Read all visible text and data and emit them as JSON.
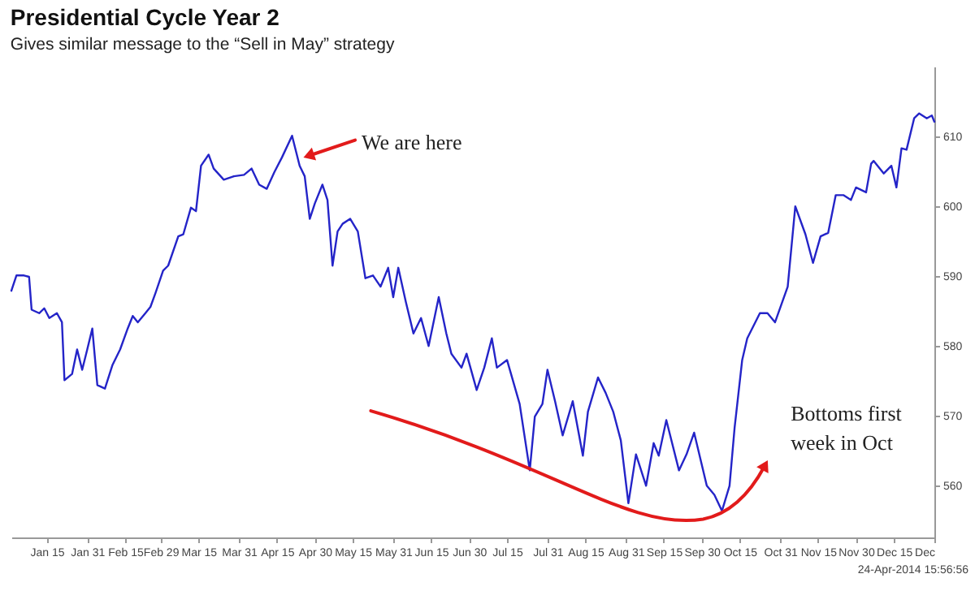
{
  "chart_data": {
    "type": "line",
    "title": "Presidential Cycle Year 2",
    "subtitle": "Gives similar message to the “Sell in May” strategy",
    "x": [
      "--01-01",
      "--01-03",
      "--01-06",
      "--01-08",
      "--01-09",
      "--01-12",
      "--01-14",
      "--01-16",
      "--01-19",
      "--01-21",
      "--01-22",
      "--01-25",
      "--01-27",
      "--01-29",
      "--01-31",
      "--02-02",
      "--02-04",
      "--02-07",
      "--02-10",
      "--02-13",
      "--02-16",
      "--02-18",
      "--02-20",
      "--02-23",
      "--02-25",
      "--02-27",
      "--03-01",
      "--03-03",
      "--03-07",
      "--03-09",
      "--03-12",
      "--03-14",
      "--03-16",
      "--03-19",
      "--03-21",
      "--03-25",
      "--03-29",
      "--04-02",
      "--04-05",
      "--04-08",
      "--04-11",
      "--04-14",
      "--04-17",
      "--04-21",
      "--04-24",
      "--04-26",
      "--04-28",
      "--04-30",
      "--05-03",
      "--05-05",
      "--05-07",
      "--05-09",
      "--05-11",
      "--05-14",
      "--05-17",
      "--05-20",
      "--05-23",
      "--05-26",
      "--05-29",
      "--05-31",
      "--06-02",
      "--06-05",
      "--06-08",
      "--06-11",
      "--06-14",
      "--06-18",
      "--06-21",
      "--06-23",
      "--06-27",
      "--06-29",
      "--07-03",
      "--07-06",
      "--07-09",
      "--07-11",
      "--07-15",
      "--07-20",
      "--07-24",
      "--07-26",
      "--07-29",
      "--07-31",
      "--08-03",
      "--08-06",
      "--08-10",
      "--08-14",
      "--08-16",
      "--08-20",
      "--08-23",
      "--08-26",
      "--08-29",
      "--09-01",
      "--09-04",
      "--09-08",
      "--09-11",
      "--09-13",
      "--09-16",
      "--09-21",
      "--09-24",
      "--09-27",
      "--10-02",
      "--10-05",
      "--10-08",
      "--10-11",
      "--10-13",
      "--10-16",
      "--10-18",
      "--10-23",
      "--10-26",
      "--10-29",
      "--11-03",
      "--11-06",
      "--11-10",
      "--11-13",
      "--11-16",
      "--11-19",
      "--11-22",
      "--11-25",
      "--11-28",
      "--11-30",
      "--12-04",
      "--12-06",
      "--12-07",
      "--12-11",
      "--12-14",
      "--12-16",
      "--12-18",
      "--12-20",
      "--12-23",
      "--12-25",
      "--12-28",
      "--12-30",
      "--12-31"
    ],
    "series": [
      {
        "color": "#2424c8",
        "values": [
          587.9,
          590.1,
          590.1,
          589.9,
          585.2,
          584.7,
          585.4,
          584.0,
          584.7,
          583.4,
          575.1,
          576.0,
          579.5,
          576.6,
          579.5,
          582.5,
          574.4,
          573.9,
          577.3,
          579.5,
          582.5,
          584.3,
          583.4,
          584.7,
          585.6,
          587.6,
          590.8,
          591.5,
          595.7,
          596.0,
          599.8,
          599.3,
          605.8,
          607.4,
          605.4,
          603.8,
          604.3,
          604.5,
          605.4,
          603.1,
          602.5,
          604.9,
          607.0,
          610.1,
          605.8,
          604.3,
          598.2,
          600.4,
          603.1,
          600.9,
          591.5,
          596.4,
          597.5,
          598.2,
          596.4,
          589.7,
          590.1,
          588.5,
          591.2,
          587.0,
          591.2,
          586.3,
          581.8,
          584.0,
          580.0,
          587.0,
          581.8,
          578.9,
          576.9,
          578.9,
          573.7,
          576.9,
          581.1,
          576.9,
          578.0,
          571.7,
          562.2,
          569.9,
          571.7,
          576.6,
          572.1,
          567.2,
          572.1,
          564.3,
          570.6,
          575.5,
          573.3,
          570.6,
          566.5,
          557.5,
          564.5,
          560.0,
          566.1,
          564.3,
          569.4,
          562.2,
          564.5,
          567.6,
          560.0,
          558.7,
          556.4,
          560.0,
          568.3,
          578.0,
          581.1,
          584.7,
          584.7,
          583.4,
          588.5,
          600.0,
          596.0,
          591.9,
          595.7,
          596.2,
          601.6,
          601.6,
          600.9,
          602.7,
          602.0,
          606.1,
          606.5,
          604.7,
          605.8,
          602.7,
          608.3,
          608.1,
          612.6,
          613.3,
          612.6,
          613.0,
          612.1
        ]
      }
    ],
    "xlim": [
      "--01-01",
      "--12-31"
    ],
    "xticks": [
      {
        "value": "--01-15",
        "label": "Jan 15"
      },
      {
        "value": "--01-31",
        "label": "Jan 31"
      },
      {
        "value": "--02-15",
        "label": "Feb 15"
      },
      {
        "value": "--02-29",
        "label": "Feb 29"
      },
      {
        "value": "--03-15",
        "label": "Mar 15"
      },
      {
        "value": "--03-31",
        "label": "Mar 31"
      },
      {
        "value": "--04-15",
        "label": "Apr 15"
      },
      {
        "value": "--04-30",
        "label": "Apr 30"
      },
      {
        "value": "--05-15",
        "label": "May 15"
      },
      {
        "value": "--05-31",
        "label": "May 31"
      },
      {
        "value": "--06-15",
        "label": "Jun 15"
      },
      {
        "value": "--06-30",
        "label": "Jun 30"
      },
      {
        "value": "--07-15",
        "label": "Jul 15"
      },
      {
        "value": "--07-31",
        "label": "Jul 31"
      },
      {
        "value": "--08-15",
        "label": "Aug 15"
      },
      {
        "value": "--08-31",
        "label": "Aug 31"
      },
      {
        "value": "--09-15",
        "label": "Sep 15"
      },
      {
        "value": "--09-30",
        "label": "Sep 30"
      },
      {
        "value": "--10-15",
        "label": "Oct 15"
      },
      {
        "value": "--10-31",
        "label": "Oct 31"
      },
      {
        "value": "--11-15",
        "label": "Nov 15"
      },
      {
        "value": "--11-30",
        "label": "Nov 30"
      },
      {
        "value": "--12-15",
        "label": "Dec 15"
      },
      {
        "value": "--12-31",
        "label": "Dec"
      }
    ],
    "ylim": [
      552.6,
      620
    ],
    "yticks": [
      560,
      570,
      580,
      590,
      600,
      610
    ],
    "annotations": [
      "We are here",
      "Bottoms first week in Oct",
      "24-Apr-2014 15:56:56"
    ]
  }
}
